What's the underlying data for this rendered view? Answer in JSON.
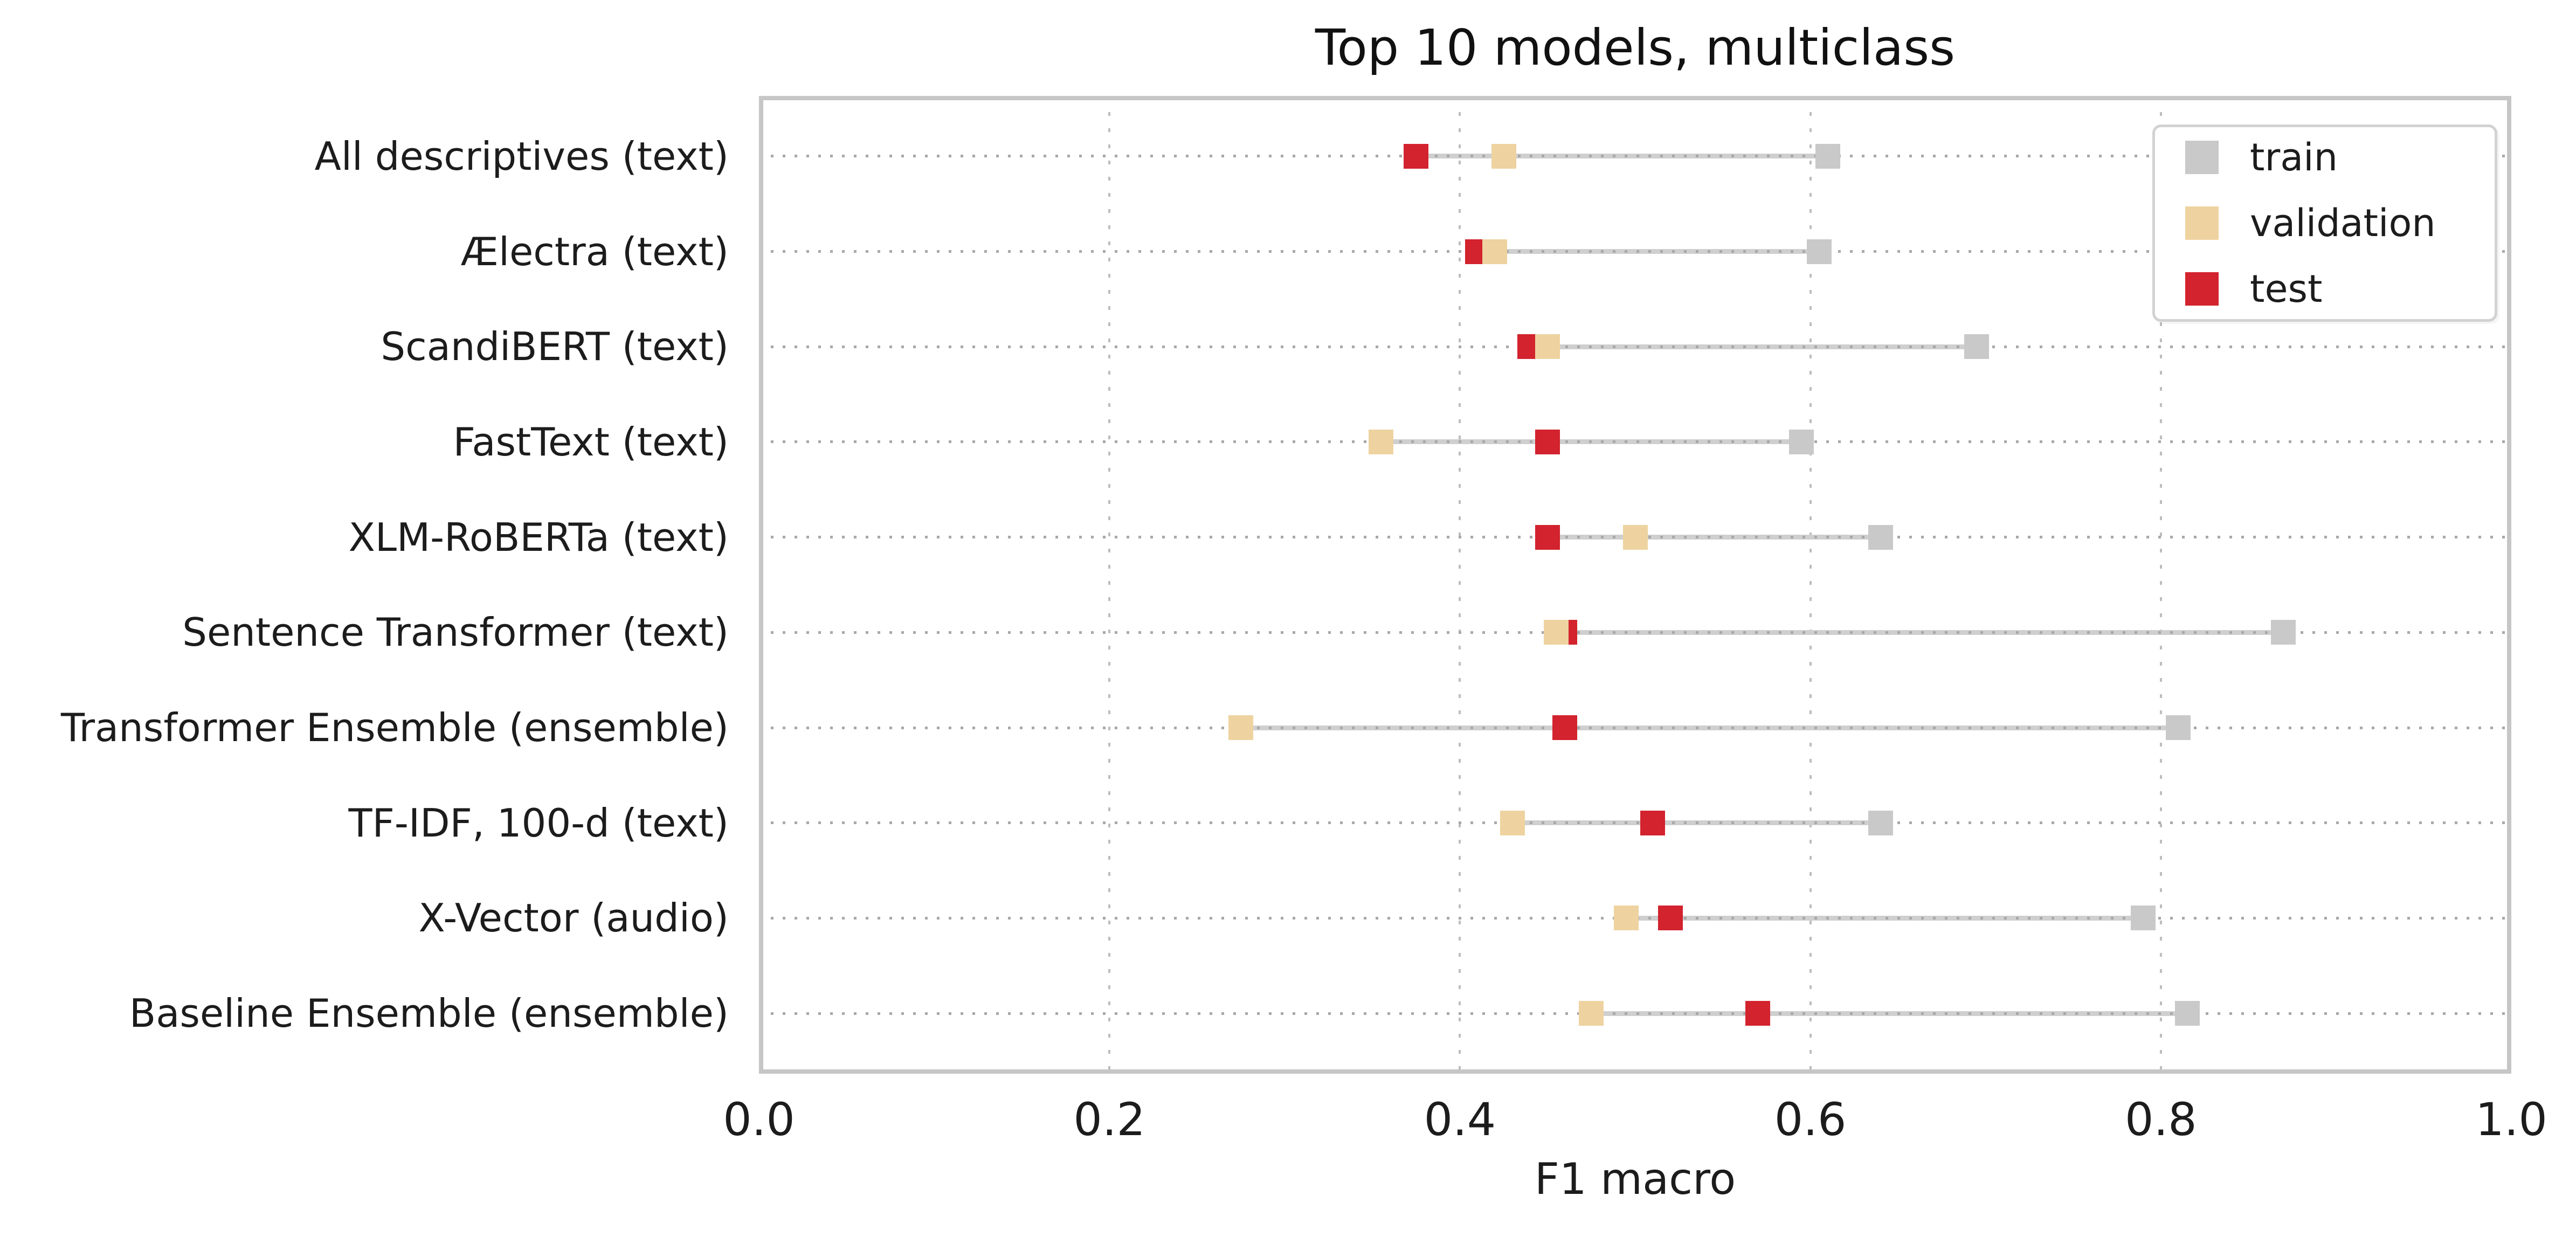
{
  "chart_data": {
    "type": "scatter",
    "variant": "dumbbell",
    "title": "Top 10 models, multiclass",
    "xlabel": "F1 macro",
    "xlim": [
      0.0,
      1.0
    ],
    "xticks": [
      0.0,
      0.2,
      0.4,
      0.6,
      0.8,
      1.0
    ],
    "xtick_labels": [
      "0.0",
      "0.2",
      "0.4",
      "0.6",
      "0.8",
      "1.0"
    ],
    "grid": true,
    "connector": "light gray range line from min to max marker per category",
    "legend_position": "upper right",
    "categories": [
      "All descriptives (text)",
      "Ælectra (text)",
      "ScandiBERT (text)",
      "FastText (text)",
      "XLM-RoBERTa (text)",
      "Sentence Transformer (text)",
      "Transformer Ensemble (ensemble)",
      "TF-IDF, 100-d (text)",
      "X-Vector (audio)",
      "Baseline Ensemble (ensemble)"
    ],
    "series": [
      {
        "name": "train",
        "color": "#c9c9c9",
        "marker": "square",
        "values": [
          0.61,
          0.605,
          0.695,
          0.595,
          0.64,
          0.87,
          0.81,
          0.64,
          0.79,
          0.815
        ]
      },
      {
        "name": "validation",
        "color": "#eed3a0",
        "marker": "square",
        "values": [
          0.425,
          0.42,
          0.45,
          0.355,
          0.5,
          0.455,
          0.275,
          0.43,
          0.495,
          0.475
        ]
      },
      {
        "name": "test",
        "color": "#d2232e",
        "marker": "square",
        "values": [
          0.375,
          0.41,
          0.44,
          0.45,
          0.45,
          0.46,
          0.46,
          0.51,
          0.52,
          0.57
        ]
      }
    ]
  },
  "colors": {
    "spine": "#c6c6c6",
    "grid_dot": "#a8a8a8",
    "range_line": "#cfcfcf",
    "text": "#1c1c1c"
  }
}
